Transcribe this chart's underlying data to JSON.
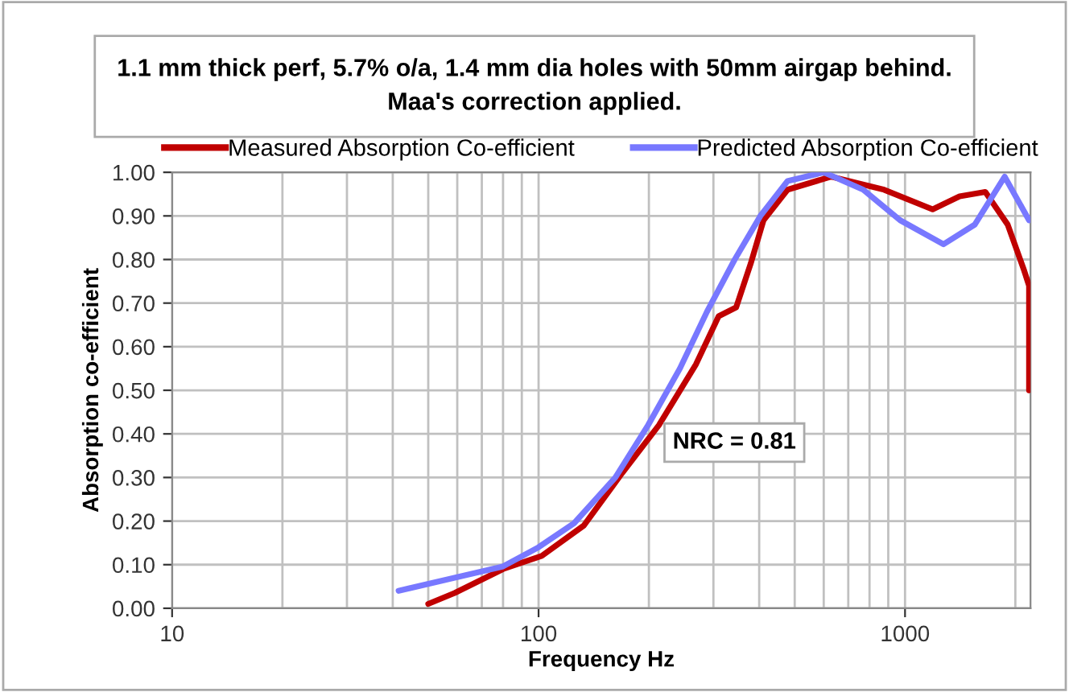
{
  "chart_data": {
    "type": "line",
    "title": "1.1 mm thick perf, 5.7% o/a, 1.4 mm dia holes with 50mm airgap behind.\nMaa's correction applied.",
    "xlabel": "Frequency Hz",
    "ylabel": "Absorption co-efficient",
    "log": "x",
    "xlim": [
      10,
      2200
    ],
    "xticks": [
      10,
      100,
      1000
    ],
    "ylim": [
      0,
      1
    ],
    "yticks": [
      {
        "value": 0,
        "label": "0.00"
      },
      {
        "value": 0.1,
        "label": "0.10"
      },
      {
        "value": 0.2,
        "label": "0.20"
      },
      {
        "value": 0.3,
        "label": "0.30"
      },
      {
        "value": 0.4,
        "label": "0.40"
      },
      {
        "value": 0.5,
        "label": "0.50"
      },
      {
        "value": 0.6,
        "label": "0.60"
      },
      {
        "value": 0.7,
        "label": "0.70"
      },
      {
        "value": 0.8,
        "label": "0.80"
      },
      {
        "value": 0.9,
        "label": "0.90"
      },
      {
        "value": 1.0,
        "label": "1.00"
      }
    ],
    "grid": true,
    "legend": "top",
    "marker": "none",
    "line_style": "solid",
    "annotations": [
      "NRC = 0.81"
    ],
    "series": [
      {
        "name": "Measured Absorption Co-efficient",
        "color": "#c00000",
        "x": [
          50,
          59,
          80,
          102,
          133,
          169,
          213,
          269,
          310,
          346,
          379,
          411,
          478,
          628,
          877,
          1189,
          1409,
          1656,
          1906,
          2113,
          2180,
          2180
        ],
        "values": [
          0.01,
          0.035,
          0.09,
          0.12,
          0.19,
          0.31,
          0.42,
          0.56,
          0.67,
          0.69,
          0.79,
          0.89,
          0.96,
          0.99,
          0.96,
          0.915,
          0.945,
          0.955,
          0.88,
          0.775,
          0.74,
          0.5
        ]
      },
      {
        "name": "Predicted Absorption Co-efficient",
        "color": "#7878ff",
        "x": [
          41.5,
          59,
          80,
          100,
          125,
          162,
          199,
          243,
          288,
          343,
          403,
          478,
          600,
          769,
          970,
          1274,
          1550,
          1870,
          2180
        ],
        "values": [
          0.04,
          0.07,
          0.096,
          0.14,
          0.195,
          0.3,
          0.42,
          0.55,
          0.68,
          0.8,
          0.9,
          0.98,
          1.0,
          0.96,
          0.89,
          0.835,
          0.88,
          0.99,
          0.89
        ]
      }
    ]
  }
}
